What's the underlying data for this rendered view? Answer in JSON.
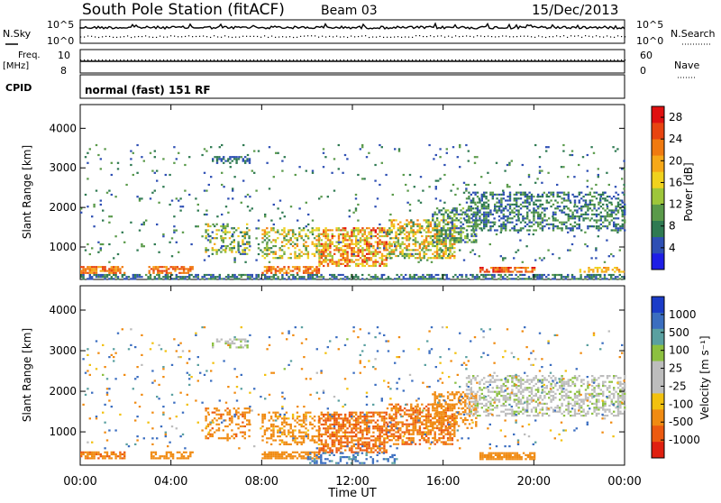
{
  "header": {
    "station": "South Pole Station (fitACF)",
    "beam": "Beam 03",
    "date": "15/Dec/2013"
  },
  "panels": {
    "nsky_label": "N.Sky",
    "nsky_tick_hi": "10^5",
    "nsky_tick_lo": "10^0",
    "nsearch_label": "N.Search",
    "nsearch_tick_hi": "10^5",
    "nsearch_tick_lo": "10^0",
    "freq_label_1": "Freq.",
    "freq_label_2": "[MHz]",
    "freq_tick_hi": "10",
    "freq_tick_lo": "8",
    "nave_label": "Nave",
    "nave_tick_hi": "60",
    "nave_tick_lo": "0",
    "cpid_label": "CPID",
    "cpid_value": "normal (fast) 151 RF"
  },
  "colors": {
    "power_scale": [
      "#1e1ee6",
      "#2e4fb4",
      "#2f7a52",
      "#5a9a4a",
      "#9ec63a",
      "#f0d21e",
      "#f6a818",
      "#f07a10",
      "#e84410",
      "#e01010"
    ],
    "velocity_scale": [
      "#1b3cc8",
      "#3b6ec0",
      "#5aa0a0",
      "#8cc040",
      "#bdbdbd",
      "#bdbdbd",
      "#f2c10f",
      "#f08b12",
      "#ec5a10",
      "#e02010"
    ]
  },
  "chart_data": [
    {
      "type": "heatmap",
      "title": "",
      "quantity": "Power",
      "xlabel": "Time UT",
      "ylabel": "Slant Range [km]",
      "x_ticks": [
        "00:00",
        "04:00",
        "08:00",
        "12:00",
        "16:00",
        "20:00",
        "00:00"
      ],
      "y_ticks": [
        1000,
        2000,
        3000,
        4000
      ],
      "xlim_hours": [
        0,
        24
      ],
      "ylim_km": [
        180,
        4600
      ],
      "colorbar_label": "Power [dB]",
      "colorbar_ticks": [
        4,
        8,
        12,
        16,
        20,
        24,
        28
      ],
      "colorbar_range": [
        0,
        30
      ],
      "scatter_regions": [
        {
          "t0": 0.0,
          "t1": 24.0,
          "r0": 200,
          "r1": 320,
          "v0": 3,
          "v1": 10,
          "density": 0.6
        },
        {
          "t0": 0.0,
          "t1": 2.0,
          "r0": 350,
          "r1": 520,
          "v0": 18,
          "v1": 26,
          "density": 0.7
        },
        {
          "t0": 3.0,
          "t1": 5.0,
          "r0": 350,
          "r1": 520,
          "v0": 20,
          "v1": 26,
          "density": 0.7
        },
        {
          "t0": 8.0,
          "t1": 10.5,
          "r0": 350,
          "r1": 520,
          "v0": 18,
          "v1": 26,
          "density": 0.7
        },
        {
          "t0": 17.6,
          "t1": 20.0,
          "r0": 350,
          "r1": 500,
          "v0": 20,
          "v1": 28,
          "density": 0.8
        },
        {
          "t0": 22.0,
          "t1": 24.0,
          "r0": 350,
          "r1": 500,
          "v0": 14,
          "v1": 22,
          "density": 0.5
        },
        {
          "t0": 5.5,
          "t1": 7.5,
          "r0": 800,
          "r1": 1600,
          "v0": 4,
          "v1": 20,
          "density": 0.35
        },
        {
          "t0": 8.0,
          "t1": 10.5,
          "r0": 700,
          "r1": 1500,
          "v0": 8,
          "v1": 22,
          "density": 0.4
        },
        {
          "t0": 10.5,
          "t1": 13.5,
          "r0": 500,
          "r1": 1500,
          "v0": 12,
          "v1": 28,
          "density": 0.6
        },
        {
          "t0": 13.5,
          "t1": 16.5,
          "r0": 700,
          "r1": 1700,
          "v0": 8,
          "v1": 24,
          "density": 0.55
        },
        {
          "t0": 15.5,
          "t1": 17.5,
          "r0": 1100,
          "r1": 2000,
          "v0": 4,
          "v1": 14,
          "density": 0.45
        },
        {
          "t0": 17.0,
          "t1": 24.0,
          "r0": 1400,
          "r1": 2400,
          "v0": 3,
          "v1": 12,
          "density": 0.45
        },
        {
          "t0": 5.8,
          "t1": 7.5,
          "r0": 3100,
          "r1": 3300,
          "v0": 3,
          "v1": 8,
          "density": 0.4
        },
        {
          "t0": 0.0,
          "t1": 24.0,
          "r0": 600,
          "r1": 3600,
          "v0": 3,
          "v1": 12,
          "density": 0.03
        }
      ]
    },
    {
      "type": "heatmap",
      "title": "",
      "quantity": "Velocity",
      "xlabel": "Time UT",
      "ylabel": "Slant Range [km]",
      "x_ticks": [
        "00:00",
        "04:00",
        "08:00",
        "12:00",
        "16:00",
        "20:00",
        "00:00"
      ],
      "y_ticks": [
        1000,
        2000,
        3000,
        4000
      ],
      "xlim_hours": [
        0,
        24
      ],
      "ylim_km": [
        180,
        4600
      ],
      "colorbar_label": "Velocity [m s⁻¹]",
      "colorbar_ticks": [
        1000,
        500,
        100,
        25,
        -25,
        -100,
        -500,
        -1000
      ],
      "colorbar_range": [
        -1000,
        1000
      ],
      "scatter_regions": [
        {
          "t0": 0.0,
          "t1": 2.0,
          "r0": 350,
          "r1": 520,
          "v0": -200,
          "v1": -600,
          "density": 0.7
        },
        {
          "t0": 3.0,
          "t1": 5.0,
          "r0": 350,
          "r1": 520,
          "v0": -200,
          "v1": -500,
          "density": 0.7
        },
        {
          "t0": 8.0,
          "t1": 10.5,
          "r0": 350,
          "r1": 520,
          "v0": -200,
          "v1": -500,
          "density": 0.7
        },
        {
          "t0": 17.6,
          "t1": 20.0,
          "r0": 350,
          "r1": 500,
          "v0": -200,
          "v1": -500,
          "density": 0.8
        },
        {
          "t0": 5.5,
          "t1": 7.5,
          "r0": 800,
          "r1": 1600,
          "v0": -100,
          "v1": -600,
          "density": 0.35
        },
        {
          "t0": 8.0,
          "t1": 10.5,
          "r0": 700,
          "r1": 1500,
          "v0": -50,
          "v1": -500,
          "density": 0.4
        },
        {
          "t0": 10.5,
          "t1": 13.5,
          "r0": 500,
          "r1": 1500,
          "v0": -200,
          "v1": -900,
          "density": 0.6
        },
        {
          "t0": 13.5,
          "t1": 16.5,
          "r0": 700,
          "r1": 1700,
          "v0": -200,
          "v1": -800,
          "density": 0.55
        },
        {
          "t0": 15.5,
          "t1": 17.5,
          "r0": 1100,
          "r1": 2000,
          "v0": -100,
          "v1": -500,
          "density": 0.45
        },
        {
          "t0": 17.0,
          "t1": 24.0,
          "r0": 1400,
          "r1": 2400,
          "v0": -20,
          "v1": 20,
          "density": 0.45
        },
        {
          "t0": 10.0,
          "t1": 14.0,
          "r0": 250,
          "r1": 500,
          "v0": 50,
          "v1": 200,
          "density": 0.3
        },
        {
          "t0": 5.8,
          "t1": 7.5,
          "r0": 3100,
          "r1": 3300,
          "v0": -20,
          "v1": 20,
          "density": 0.4
        },
        {
          "t0": 0.0,
          "t1": 24.0,
          "r0": 600,
          "r1": 3600,
          "v0": -300,
          "v1": 300,
          "density": 0.03
        }
      ]
    }
  ]
}
